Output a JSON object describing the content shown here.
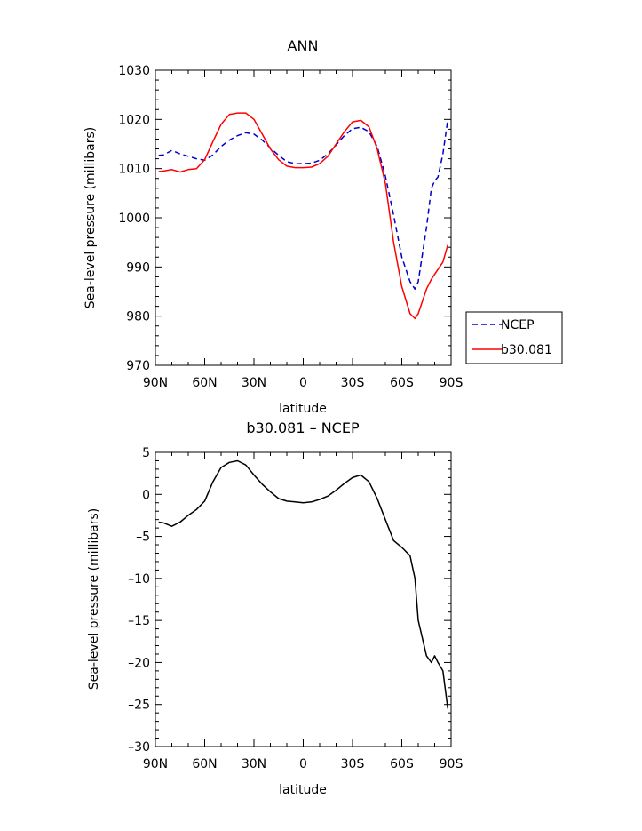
{
  "chart_data": [
    {
      "type": "line",
      "title": "ANN",
      "xlabel": "latitude",
      "ylabel": "Sea-level pressure (millibars)",
      "xlim": [
        90,
        -90
      ],
      "ylim": [
        970,
        1030
      ],
      "x_ticks": [
        90,
        60,
        30,
        0,
        -30,
        -60,
        -90
      ],
      "x_tick_labels": [
        "90N",
        "60N",
        "30N",
        "0",
        "30S",
        "60S",
        "90S"
      ],
      "y_ticks": [
        970,
        980,
        990,
        1000,
        1010,
        1020,
        1030
      ],
      "y_tick_labels": [
        "970",
        "980",
        "990",
        "1000",
        "1010",
        "1020",
        "1030"
      ],
      "grid": false,
      "legend_position": "right",
      "series": [
        {
          "name": "NCEP",
          "color": "#0000cc",
          "dash": "dashed",
          "x": [
            88,
            85,
            80,
            75,
            70,
            65,
            60,
            55,
            50,
            45,
            40,
            35,
            30,
            25,
            20,
            15,
            10,
            5,
            0,
            -5,
            -10,
            -15,
            -20,
            -25,
            -30,
            -35,
            -40,
            -45,
            -50,
            -55,
            -60,
            -65,
            -68,
            -70,
            -75,
            -78,
            -80,
            -82,
            -85,
            -88
          ],
          "y": [
            1012.7,
            1012.8,
            1013.7,
            1013.0,
            1012.5,
            1012.0,
            1011.7,
            1012.8,
            1014.5,
            1015.8,
            1016.7,
            1017.3,
            1017.0,
            1015.8,
            1014.2,
            1012.7,
            1011.4,
            1011.0,
            1011.0,
            1011.1,
            1011.7,
            1013.0,
            1014.8,
            1016.7,
            1018.1,
            1018.4,
            1017.5,
            1014.5,
            1008.5,
            1000.5,
            992.0,
            987.0,
            985.5,
            987.0,
            998.0,
            1006.0,
            1007.5,
            1008.3,
            1013.0,
            1020.0
          ]
        },
        {
          "name": "b30.081",
          "color": "#ff0000",
          "dash": "solid",
          "x": [
            88,
            85,
            80,
            75,
            70,
            65,
            60,
            55,
            50,
            45,
            40,
            35,
            30,
            25,
            20,
            15,
            10,
            5,
            0,
            -5,
            -10,
            -15,
            -20,
            -25,
            -30,
            -35,
            -40,
            -45,
            -50,
            -55,
            -60,
            -65,
            -68,
            -70,
            -75,
            -78,
            -80,
            -85,
            -88
          ],
          "y": [
            1009.4,
            1009.5,
            1009.8,
            1009.3,
            1009.8,
            1010.0,
            1011.8,
            1015.5,
            1019.0,
            1021.0,
            1021.3,
            1021.3,
            1020.0,
            1017.0,
            1014.0,
            1011.8,
            1010.5,
            1010.2,
            1010.2,
            1010.3,
            1011.0,
            1012.5,
            1015.0,
            1017.5,
            1019.5,
            1019.8,
            1018.5,
            1014.0,
            1007.0,
            995.0,
            986.0,
            980.5,
            979.5,
            980.5,
            985.5,
            987.5,
            988.5,
            991.0,
            994.5
          ]
        }
      ]
    },
    {
      "type": "line",
      "title": "b30.081 – NCEP",
      "xlabel": "latitude",
      "ylabel": "Sea-level pressure (millibars)",
      "xlim": [
        90,
        -90
      ],
      "ylim": [
        -30,
        5
      ],
      "x_ticks": [
        90,
        60,
        30,
        0,
        -30,
        -60,
        -90
      ],
      "x_tick_labels": [
        "90N",
        "60N",
        "30N",
        "0",
        "30S",
        "60S",
        "90S"
      ],
      "y_ticks": [
        -30,
        -25,
        -20,
        -15,
        -10,
        -5,
        0,
        5
      ],
      "y_tick_labels": [
        "–30",
        "–25",
        "–20",
        "–15",
        "–10",
        "–5",
        "0",
        "5"
      ],
      "grid": false,
      "series": [
        {
          "color": "#000000",
          "dash": "solid",
          "x": [
            88,
            85,
            80,
            75,
            70,
            65,
            60,
            55,
            50,
            45,
            40,
            35,
            30,
            25,
            20,
            15,
            10,
            5,
            0,
            -5,
            -10,
            -15,
            -20,
            -25,
            -30,
            -35,
            -40,
            -45,
            -50,
            -55,
            -60,
            -65,
            -68,
            -70,
            -75,
            -78,
            -80,
            -82,
            -85,
            -88
          ],
          "y": [
            -3.3,
            -3.4,
            -3.8,
            -3.3,
            -2.5,
            -1.8,
            -0.8,
            1.5,
            3.2,
            3.8,
            4.0,
            3.5,
            2.3,
            1.2,
            0.3,
            -0.5,
            -0.8,
            -0.9,
            -1.0,
            -0.9,
            -0.6,
            -0.2,
            0.5,
            1.3,
            2.0,
            2.3,
            1.5,
            -0.5,
            -3.0,
            -5.5,
            -6.3,
            -7.3,
            -10.0,
            -15.0,
            -19.2,
            -20.0,
            -19.2,
            -20.0,
            -21.0,
            -25.5
          ]
        }
      ]
    }
  ]
}
